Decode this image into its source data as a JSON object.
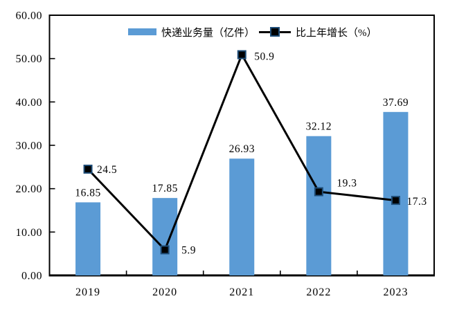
{
  "chart_data": {
    "type": "combo",
    "title": "",
    "xlabel": "",
    "ylabel": "",
    "categories": [
      "2019",
      "2020",
      "2021",
      "2022",
      "2023"
    ],
    "series": [
      {
        "name": "快递业务量（亿件）",
        "type": "bar",
        "values": [
          16.85,
          17.85,
          26.93,
          32.12,
          37.69
        ],
        "value_labels": [
          "16.85",
          "17.85",
          "26.93",
          "32.12",
          "37.69"
        ],
        "color": "#5B9BD5"
      },
      {
        "name": "比上年增长（%）",
        "type": "line",
        "values": [
          24.5,
          5.9,
          50.9,
          19.3,
          17.3
        ],
        "value_labels": [
          "24.5",
          "5.9",
          "50.9",
          "19.3",
          "17.3"
        ],
        "line_color": "#000000",
        "marker_fill": "#000000",
        "marker_border": "#1F4E79"
      }
    ],
    "y_axis": {
      "min": 0,
      "max": 60,
      "step": 10,
      "tick_labels": [
        "0.00",
        "10.00",
        "20.00",
        "30.00",
        "40.00",
        "50.00",
        "60.00"
      ]
    },
    "axis_color": "#000000",
    "grid": false,
    "legend_position": "top-center-inside"
  }
}
